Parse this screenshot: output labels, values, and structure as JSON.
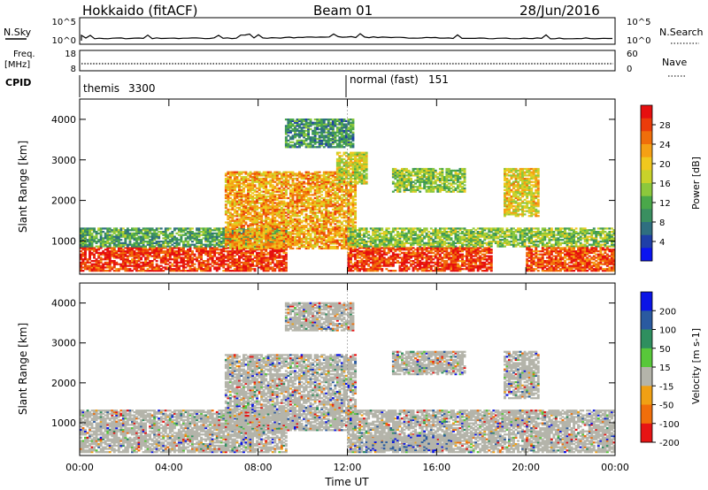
{
  "header": {
    "station": "Hokkaido (fitACF)",
    "beam": "Beam 01",
    "date": "28/Jun/2016"
  },
  "info_panels": {
    "nsky_label": "N.Sky",
    "nsky_ticks": [
      "10^5",
      "10^0"
    ],
    "nsearch_label": "N.Search",
    "nsearch_ticks": [
      "10^5",
      "10^0"
    ],
    "freq_label": "Freq.",
    "freq_unit": "[MHz]",
    "freq_ticks": [
      "18",
      "8"
    ],
    "nave_label": "Nave",
    "nave_ticks": [
      "60",
      "0"
    ],
    "cpid_label": "CPID",
    "cpid_segments": [
      {
        "name": "themis",
        "code": "3300",
        "start_hour": 0
      },
      {
        "name": "normal (fast)",
        "code": "151",
        "start_hour": 12
      }
    ]
  },
  "chart_data": [
    {
      "type": "heatmap",
      "title": "",
      "parameter": "Power",
      "xlabel": "Time UT",
      "ylabel": "Slant Range [km]",
      "xlim": [
        0,
        24
      ],
      "x_tick_labels": [
        "00:00",
        "04:00",
        "08:00",
        "12:00",
        "16:00",
        "20:00",
        "00:00"
      ],
      "ylim": [
        180,
        4500
      ],
      "y_ticks": [
        1000,
        2000,
        3000,
        4000
      ],
      "colorbar": {
        "label": "Power [dB]",
        "range": [
          0,
          32
        ],
        "ticks": [
          4,
          8,
          12,
          16,
          20,
          24,
          28
        ],
        "colors": [
          "#0a14f0",
          "#1f3fa8",
          "#2f6f80",
          "#3a8f60",
          "#4aa84a",
          "#8cc83c",
          "#c8d22a",
          "#f0c81e",
          "#f5a014",
          "#f06e0a",
          "#eb3c0a",
          "#e60f0f"
        ]
      },
      "echo_regions": [
        {
          "t": [
            0.0,
            9.2
          ],
          "r": [
            250,
            850
          ],
          "level": 0.9
        },
        {
          "t": [
            0.0,
            9.2
          ],
          "r": [
            850,
            1300
          ],
          "level": 0.35
        },
        {
          "t": [
            6.5,
            12.3
          ],
          "r": [
            800,
            2700
          ],
          "level": 0.7
        },
        {
          "t": [
            9.2,
            12.2
          ],
          "r": [
            3300,
            4000
          ],
          "level": 0.3
        },
        {
          "t": [
            11.5,
            12.8
          ],
          "r": [
            2400,
            3200
          ],
          "level": 0.55
        },
        {
          "t": [
            12.0,
            18.5
          ],
          "r": [
            250,
            850
          ],
          "level": 0.9
        },
        {
          "t": [
            12.0,
            24.0
          ],
          "r": [
            850,
            1300
          ],
          "level": 0.45
        },
        {
          "t": [
            14.0,
            17.3
          ],
          "r": [
            2200,
            2800
          ],
          "level": 0.45
        },
        {
          "t": [
            19.0,
            20.6
          ],
          "r": [
            1600,
            2800
          ],
          "level": 0.6
        },
        {
          "t": [
            20.0,
            24.0
          ],
          "r": [
            250,
            850
          ],
          "level": 0.85
        }
      ]
    },
    {
      "type": "heatmap",
      "title": "",
      "parameter": "Velocity",
      "xlabel": "Time UT",
      "ylabel": "Slant Range [km]",
      "xlim": [
        0,
        24
      ],
      "x_tick_labels": [
        "00:00",
        "04:00",
        "08:00",
        "12:00",
        "16:00",
        "20:00",
        "00:00"
      ],
      "ylim": [
        180,
        4500
      ],
      "y_ticks": [
        1000,
        2000,
        3000,
        4000
      ],
      "colorbar": {
        "label": "Velocity [m s-1]",
        "range": [
          -250,
          250
        ],
        "ticks": [
          200,
          100,
          50,
          15,
          -15,
          -50,
          -100,
          -200
        ],
        "colors": [
          "#0a14e6",
          "#2a5aa0",
          "#2f8f5f",
          "#58c83a",
          "#b4b4aa",
          "#f0a014",
          "#f06e0a",
          "#e61414"
        ]
      },
      "echo_regions": [
        {
          "t": [
            0.0,
            9.2
          ],
          "r": [
            250,
            1300
          ],
          "level": 0.0
        },
        {
          "t": [
            6.5,
            12.3
          ],
          "r": [
            800,
            2700
          ],
          "level": 0.05
        },
        {
          "t": [
            9.2,
            12.2
          ],
          "r": [
            3300,
            4000
          ],
          "level": 0.1
        },
        {
          "t": [
            12.0,
            24.0
          ],
          "r": [
            250,
            1300
          ],
          "level": 0.0
        },
        {
          "t": [
            12.8,
            16.5
          ],
          "r": [
            300,
            700
          ],
          "level": 0.4
        },
        {
          "t": [
            14.0,
            17.3
          ],
          "r": [
            2200,
            2800
          ],
          "level": 0.0
        },
        {
          "t": [
            19.0,
            20.6
          ],
          "r": [
            1600,
            2800
          ],
          "level": 0.0
        }
      ]
    }
  ]
}
